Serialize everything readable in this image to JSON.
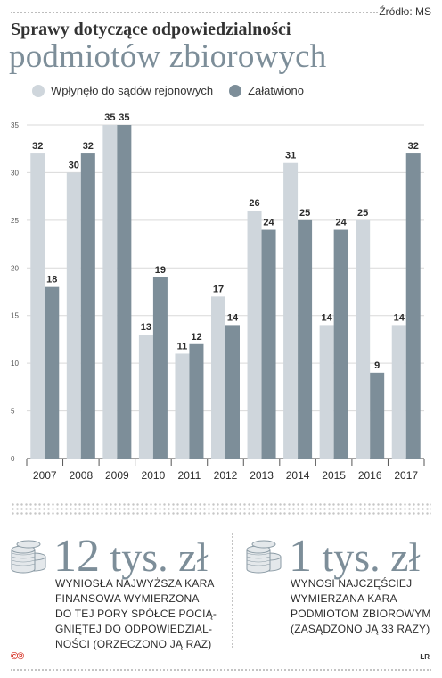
{
  "source": "Źródło: MS",
  "title": {
    "line1": "Sprawy dotyczące odpowiedzialności",
    "line2": "podmiotów zbiorowych"
  },
  "colors": {
    "incoming": "#cfd6dc",
    "resolved": "#7d8e99",
    "accent": "#7d8e99"
  },
  "chart_data": {
    "type": "bar",
    "categories": [
      "2007",
      "2008",
      "2009",
      "2010",
      "2011",
      "2012",
      "2013",
      "2014",
      "2015",
      "2016",
      "2017"
    ],
    "series": [
      {
        "name": "Wpłynęło do sądów rejonowych",
        "values": [
          32,
          30,
          35,
          13,
          11,
          17,
          26,
          31,
          14,
          25,
          14
        ]
      },
      {
        "name": "Załatwiono",
        "values": [
          18,
          32,
          35,
          19,
          12,
          14,
          24,
          25,
          24,
          9,
          32
        ]
      }
    ],
    "ylim": [
      0,
      35
    ],
    "yticks": [
      0,
      5,
      10,
      15,
      20,
      25,
      30,
      35
    ],
    "grid": true,
    "legend": "top-left",
    "data_labels": true
  },
  "stats": [
    {
      "value": "12",
      "unit": "tys. zł",
      "desc": [
        "Wyniosła najwyższa kara",
        "finansowa wymierzona",
        "do tej pory spółce pocią-",
        "gniętej do odpowiedzial-",
        "ności (orzeczono ją raz)"
      ]
    },
    {
      "value": "1",
      "unit": "tys. zł",
      "desc": [
        "Wynosi najczęściej",
        "wymierzana kara",
        "podmiotom zbiorowym",
        "(zasądzono ją 33 razy)"
      ]
    }
  ],
  "footer": {
    "logo": "©℗",
    "author": "ŁR"
  }
}
